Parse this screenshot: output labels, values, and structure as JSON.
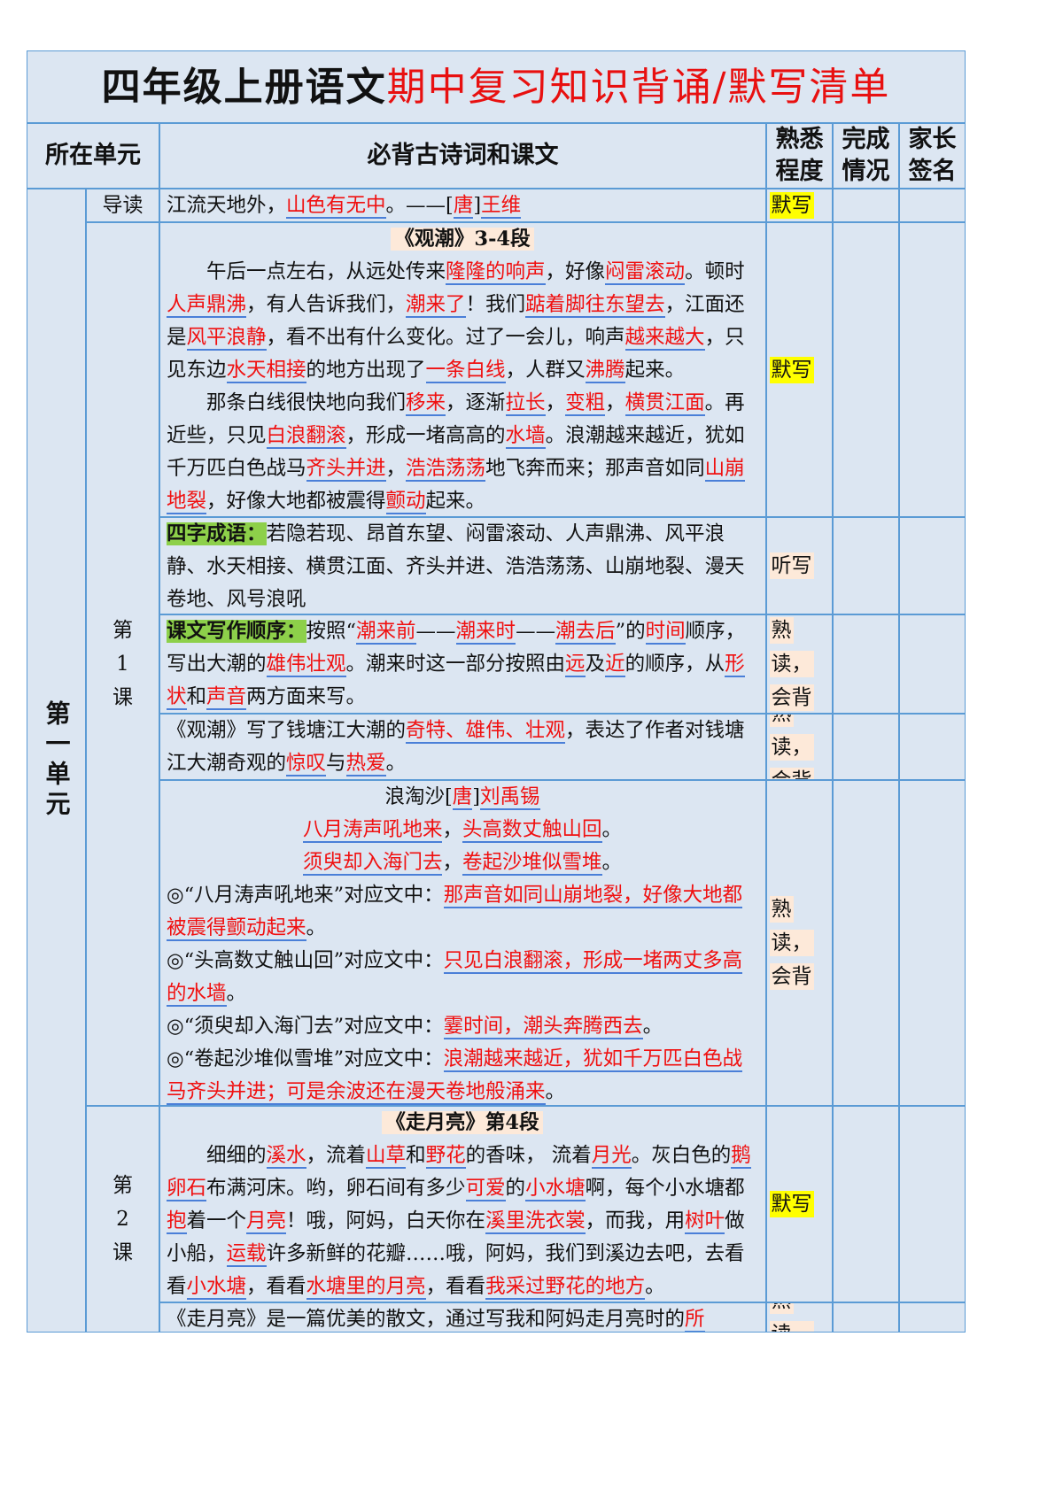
{
  "title": {
    "black": "四年级上册语文",
    "red": "期中复习知识背诵/默写清单"
  },
  "headers": {
    "unit": "所在单元",
    "content": "必背古诗词和课文",
    "familiarity": "熟悉程度",
    "completion": "完成情况",
    "parent": "家长签名"
  },
  "unit": "第一单元",
  "lessons": {
    "intro": "导读",
    "l1": "第1课",
    "l2": "第2课"
  },
  "colors": {
    "border": "#5b9bd5",
    "background": "#dce6f2",
    "red": "#f01010",
    "green": "#8dd04a",
    "yellow": "#ffff00",
    "peach": "#fde9d9"
  },
  "rows": [
    {
      "badge": "默写",
      "badge_color": "yellow",
      "paras": [
        {
          "cls": "",
          "segs": [
            "江流天地外，",
            {
              "r": "山色有无中"
            },
            "。——[",
            {
              "r": "唐"
            },
            "]",
            {
              "r": "王维"
            }
          ]
        }
      ]
    },
    {
      "badge": "默写",
      "badge_color": "yellow",
      "heading": "《观潮》3-4段",
      "paras": [
        {
          "cls": "indent",
          "segs": [
            "午后一点左右，从远处传来",
            {
              "r": "隆隆的响声"
            },
            "，好像",
            {
              "r": "闷雷滚动"
            },
            "。顿时",
            {
              "r": "人声鼎沸"
            },
            "，有人告诉我们，",
            {
              "r": "潮来了"
            },
            "！我们",
            {
              "r": "踮着脚往东望去"
            },
            "，江面还是",
            {
              "r": "风平浪静"
            },
            "，看不出有什么变化。过了一会儿，响声",
            {
              "r": "越来越大"
            },
            "，只见东边",
            {
              "r": "水天相接"
            },
            "的地方出现了",
            {
              "r": "一条白线"
            },
            "，人群又",
            {
              "r": "沸腾"
            },
            "起来。"
          ]
        },
        {
          "cls": "indent",
          "segs": [
            "那条白线很快地向我们",
            {
              "r": "移来"
            },
            "，逐渐",
            {
              "r": "拉长"
            },
            "，",
            {
              "r": "变粗"
            },
            "，",
            {
              "r": "横贯江面"
            },
            "。再近些，只见",
            {
              "r": "白浪翻滚"
            },
            "，形成一堵高高的",
            {
              "r": "水墙"
            },
            "。浪潮越来越近，犹如千万匹白色战马",
            {
              "r": "齐头并进"
            },
            "，",
            {
              "r": "浩浩荡荡"
            },
            "地飞奔而来；那声音如同",
            {
              "r": "山崩地裂"
            },
            "，好像大地都被震得",
            {
              "r": "颤动"
            },
            "起来。"
          ]
        }
      ]
    },
    {
      "badge": "听写",
      "badge_color": "peach",
      "paras": [
        {
          "cls": "",
          "segs": [
            {
              "g": "四字成语："
            },
            "若隐若现、昂首东望、闷雷滚动、人声鼎沸、风平浪静、水天相接、横贯江面、齐头并进、浩浩荡荡、山崩地裂、漫天卷地、风号浪吼"
          ]
        }
      ]
    },
    {
      "badge": "熟读，会背",
      "badge_color": "peach",
      "paras": [
        {
          "cls": "",
          "segs": [
            {
              "g": "课文写作顺序："
            },
            "按照“",
            {
              "r": "潮来前"
            },
            "——",
            {
              "r": "潮来时"
            },
            "——",
            {
              "r": "潮去后"
            },
            "”的",
            {
              "r": "时间"
            },
            "顺序，写出大潮的",
            {
              "r": "雄伟壮观"
            },
            "。潮来时这一部分按照由",
            {
              "r": "远"
            },
            "及",
            {
              "r": "近"
            },
            "的顺序，从",
            {
              "r": "形状"
            },
            "和",
            {
              "r": "声音"
            },
            "两方面来写。"
          ]
        }
      ]
    },
    {
      "badge": "熟读，会背",
      "badge_color": "peach",
      "paras": [
        {
          "cls": "",
          "segs": [
            "《观潮》写了钱塘江大潮的",
            {
              "r": "奇特、雄伟、壮观"
            },
            "，表达了作者对钱塘江大潮奇观的",
            {
              "r": "惊叹"
            },
            "与",
            {
              "r": "热爱"
            },
            "。"
          ]
        }
      ]
    },
    {
      "badge": "熟读，会背",
      "badge_color": "peach",
      "paras": [
        {
          "cls": "center",
          "segs": [
            "浪淘沙[",
            {
              "r": "唐"
            },
            "]",
            {
              "r": "刘禹锡"
            }
          ]
        },
        {
          "cls": "center",
          "segs": [
            {
              "r": "八月涛声吼地来"
            },
            "，",
            {
              "r": "头高数丈触山回"
            },
            "。"
          ]
        },
        {
          "cls": "center",
          "segs": [
            {
              "r": "须臾却入海门去"
            },
            "，",
            {
              "r": "卷起沙堆似雪堆"
            },
            "。"
          ]
        },
        {
          "cls": "",
          "segs": [
            "◎“八月涛声吼地来”对应文中：",
            {
              "r": "那声音如同山崩地裂，好像大地都被震得颤动起来"
            },
            "。"
          ]
        },
        {
          "cls": "",
          "segs": [
            "◎“头高数丈触山回”对应文中：",
            {
              "r": "只见白浪翻滚，形成一堵两丈多高的水墙"
            },
            "。"
          ]
        },
        {
          "cls": "",
          "segs": [
            "◎“须臾却入海门去”对应文中：",
            {
              "r": "霎时间，潮头奔腾西去"
            },
            "。"
          ]
        },
        {
          "cls": "",
          "segs": [
            "◎“卷起沙堆似雪堆”对应文中：",
            {
              "r": "浪潮越来越近，犹如千万匹白色战马齐头并进；可是余波还在漫天卷地般涌来"
            },
            "。"
          ]
        }
      ]
    },
    {
      "badge": "默写",
      "badge_color": "yellow",
      "heading": "《走月亮》第4段",
      "paras": [
        {
          "cls": "indent",
          "segs": [
            "细细的",
            {
              "r": "溪水"
            },
            "，流着",
            {
              "r": "山草"
            },
            "和",
            {
              "r": "野花"
            },
            "的香味， 流着",
            {
              "r": "月光"
            },
            "。灰白色的",
            {
              "r": "鹅卵石"
            },
            "布满河床。哟，卵石间有多少",
            {
              "r": "可爱"
            },
            "的",
            {
              "r": "小水塘"
            },
            "啊，每个小水塘都",
            {
              "r": "抱"
            },
            "着一个",
            {
              "r": "月亮"
            },
            "！哦，阿妈，白天你在",
            {
              "r": "溪里洗衣裳"
            },
            "，而我，用",
            {
              "r": "树叶"
            },
            "做小船，",
            {
              "r": "运载"
            },
            "许多新鲜的花瓣……哦，阿妈，我们到溪边去吧，去看看",
            {
              "r": "小水塘"
            },
            "，看看",
            {
              "r": "水塘里的月亮"
            },
            "，看看",
            {
              "r": "我采过野花的地方"
            },
            "。"
          ]
        }
      ]
    },
    {
      "badge": "熟读，",
      "badge_color": "peach",
      "paras": [
        {
          "cls": "",
          "segs": [
            "《走月亮》是一篇优美的散文，通过写我和阿妈走月亮时的",
            {
              "r": "所"
            }
          ]
        }
      ]
    }
  ]
}
